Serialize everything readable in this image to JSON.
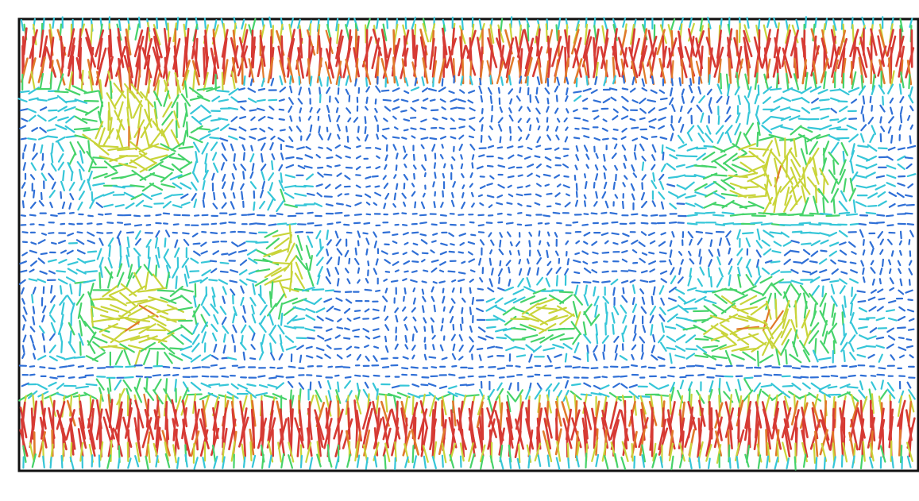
{
  "figure": {
    "background": "#ffffff",
    "frame_color": "#111111"
  },
  "field": {
    "description_hidden": "",
    "colormap": [
      "#2f6fd6",
      "#36c6d8",
      "#46d36a",
      "#c9d43a",
      "#e07a2b",
      "#d63a34"
    ],
    "seed": 7
  }
}
